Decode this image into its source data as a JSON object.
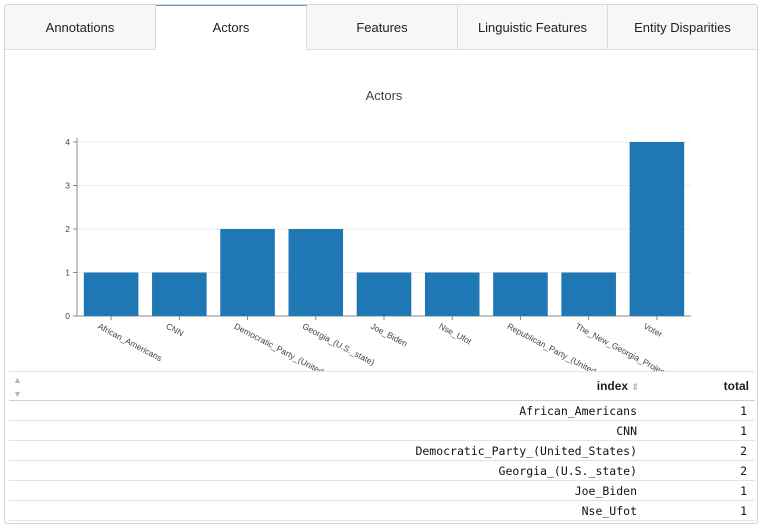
{
  "tabs": [
    {
      "label": "Annotations",
      "active": false
    },
    {
      "label": "Actors",
      "active": true
    },
    {
      "label": "Features",
      "active": false
    },
    {
      "label": "Linguistic Features",
      "active": false
    },
    {
      "label": "Entity Disparities",
      "active": false
    }
  ],
  "chart_data": {
    "type": "bar",
    "title": "Actors",
    "categories": [
      "African_Americans",
      "CNN",
      "Democratic_Party_(United",
      "Georgia_(U.S._state)",
      "Joe_Biden",
      "Nse_Ufot",
      "Republican_Party_(United",
      "The_New_Georgia_Projec",
      "Voter"
    ],
    "values": [
      1,
      1,
      2,
      2,
      1,
      1,
      1,
      1,
      4
    ],
    "ylim": [
      0,
      4
    ],
    "yticks": [
      0,
      1,
      2,
      3,
      4
    ],
    "grid": true,
    "bar_color": "#1f77b4"
  },
  "table": {
    "columns": [
      "",
      "index",
      "total"
    ],
    "rows": [
      {
        "index": "African_Americans",
        "total": "1"
      },
      {
        "index": "CNN",
        "total": "1"
      },
      {
        "index": "Democratic_Party_(United_States)",
        "total": "2"
      },
      {
        "index": "Georgia_(U.S._state)",
        "total": "2"
      },
      {
        "index": "Joe_Biden",
        "total": "1"
      },
      {
        "index": "Nse_Ufot",
        "total": "1"
      }
    ]
  },
  "icons": {
    "sort": "sort-icon"
  }
}
